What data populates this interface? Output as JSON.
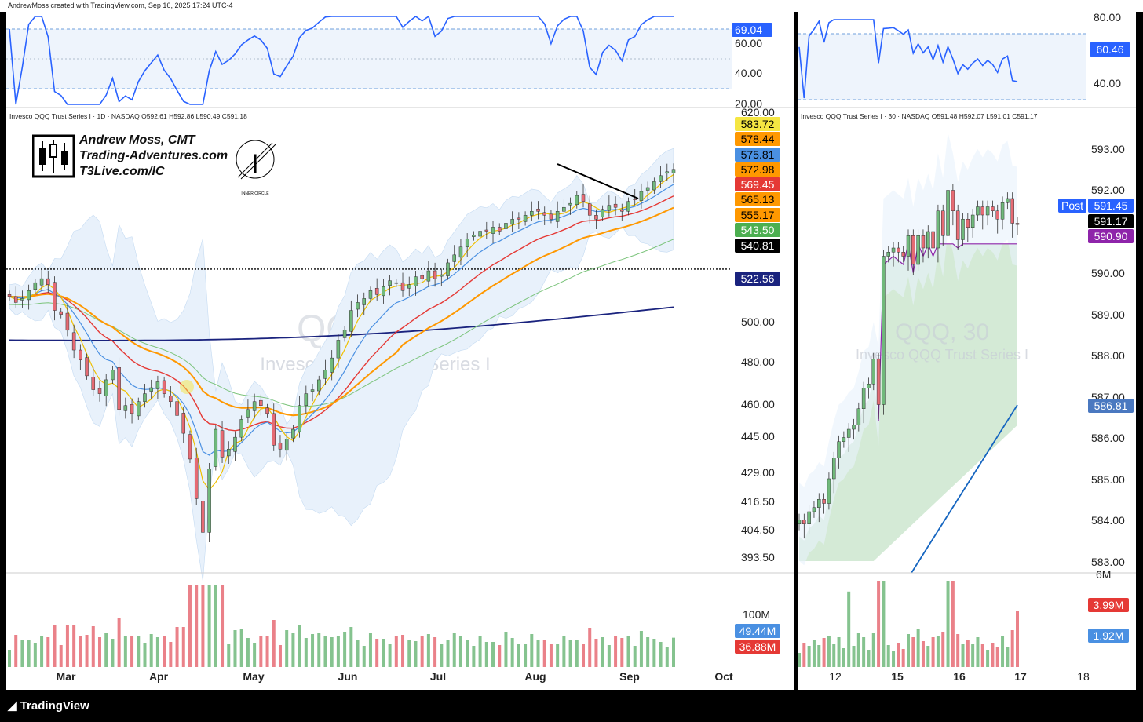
{
  "credit": "AndrewMoss created with TradingView.com, Sep 16, 2025 17:24 UTC-4",
  "footer_logo": "TradingView",
  "colors": {
    "up": "#70b97b",
    "down": "#e66b74",
    "sma10": "#f0c000",
    "ema20": "#4a90e2",
    "sma50": "#e53935",
    "sma100": "#ff9800",
    "sma200": "#1a237e",
    "green_ma": "#7cc47c",
    "rsi": "#2962ff",
    "vwap": "#8e24aa"
  },
  "left": {
    "symbol_line": "Invesco QQQ Trust Series I · 1D · NASDAQ   O592.61  H592.86  L590.49  C591.18",
    "watermark_symbol": "QQQ, 1D",
    "watermark_name": "Invesco QQQ Trust Series I",
    "brand_lines": [
      "Andrew Moss, CMT",
      "Trading-Adventures.com",
      "T3Live.com/IC"
    ],
    "brand_logo_caption": "INNER CIRCLE",
    "rsi_axis": [
      "60.00",
      "40.00",
      "20.00"
    ],
    "rsi_value": "69.04",
    "price_axis": [
      "620.00",
      "500.00",
      "480.00",
      "460.00",
      "445.00",
      "429.00",
      "416.50",
      "404.50",
      "393.50"
    ],
    "price_tags": [
      {
        "value": "583.72",
        "color": "#f5e642",
        "text": "#000"
      },
      {
        "value": "578.44",
        "color": "#ff9800",
        "text": "#000"
      },
      {
        "value": "575.81",
        "color": "#4a90e2",
        "text": "#000"
      },
      {
        "value": "572.98",
        "color": "#ff9800",
        "text": "#000"
      },
      {
        "value": "569.45",
        "color": "#e53935",
        "text": "#fff"
      },
      {
        "value": "565.13",
        "color": "#ff9800",
        "text": "#000"
      },
      {
        "value": "555.17",
        "color": "#ff9800",
        "text": "#000"
      },
      {
        "value": "543.50",
        "color": "#4caf50",
        "text": "#fff"
      },
      {
        "value": "540.81",
        "color": "#000000",
        "text": "#fff"
      },
      {
        "value": "522.56",
        "color": "#1a237e",
        "text": "#fff"
      }
    ],
    "volume_axis": "100M",
    "volume_tags": [
      {
        "value": "49.44M",
        "color": "#4a90e2"
      },
      {
        "value": "36.88M",
        "color": "#e53935"
      }
    ],
    "months": [
      "Mar",
      "Apr",
      "May",
      "Jun",
      "Jul",
      "Aug",
      "Sep",
      "Oct"
    ]
  },
  "right": {
    "symbol_line": "Invesco QQQ Trust Series I · 30 · NASDAQ   O591.48  H592.07  L591.01  C591.17",
    "watermark_symbol": "QQQ, 30",
    "watermark_name": "Invesco QQQ Trust Series I",
    "rsi_axis": [
      "80.00",
      "40.00"
    ],
    "rsi_value": "60.46",
    "price_axis": [
      "593.00",
      "592.00",
      "590.00",
      "589.00",
      "588.00",
      "587.00",
      "586.00",
      "585.00",
      "584.00",
      "583.00"
    ],
    "price_tags": [
      {
        "value": "591.45",
        "color": "#2962ff",
        "text": "#fff",
        "label": "Post"
      },
      {
        "value": "591.17",
        "color": "#000000",
        "text": "#fff"
      },
      {
        "value": "590.90",
        "color": "#8e24aa",
        "text": "#fff"
      },
      {
        "value": "586.81",
        "color": "#4a78c0",
        "text": "#fff"
      }
    ],
    "volume_axis": "6M",
    "volume_tags": [
      {
        "value": "3.99M",
        "color": "#e53935"
      },
      {
        "value": "1.92M",
        "color": "#4a90e2"
      }
    ],
    "days": [
      "12",
      "15",
      "16",
      "17",
      "18"
    ]
  },
  "chart_data": [
    {
      "type": "candlestick",
      "title": "QQQ, 1D",
      "ylim": [
        393.5,
        620
      ],
      "months": [
        "Mar",
        "Apr",
        "May",
        "Jun",
        "Jul",
        "Aug",
        "Sep",
        "Oct"
      ],
      "closes": [
        527,
        524,
        526,
        530,
        534,
        536,
        533,
        520,
        518,
        510,
        500,
        495,
        487,
        480,
        478,
        485,
        490,
        470,
        472,
        468,
        474,
        478,
        481,
        484,
        478,
        474,
        467,
        458,
        445,
        425,
        408,
        440,
        460,
        446,
        450,
        456,
        465,
        470,
        474,
        472,
        468,
        452,
        450,
        455,
        460,
        472,
        478,
        480,
        485,
        490,
        496,
        505,
        510,
        520,
        524,
        526,
        530,
        528,
        532,
        535,
        534,
        530,
        533,
        537,
        536,
        540,
        536,
        538,
        544,
        548,
        552,
        556,
        558,
        560,
        560,
        562,
        560,
        564,
        566,
        566,
        568,
        570,
        570,
        568,
        566,
        570,
        572,
        574,
        578,
        575,
        568,
        566,
        571,
        573,
        572,
        570,
        575,
        576,
        580,
        582,
        585,
        588,
        590,
        591
      ],
      "last": {
        "open": 592.61,
        "high": 592.86,
        "low": 590.49,
        "close": 591.18
      },
      "rsi_last": 69.04
    },
    {
      "type": "candlestick",
      "title": "QQQ, 30",
      "ylim": [
        583,
        593
      ],
      "days": [
        "12",
        "15",
        "16",
        "17",
        "18"
      ],
      "closes": [
        584.0,
        583.9,
        584.2,
        584.3,
        584.5,
        584.4,
        585.0,
        585.5,
        585.9,
        586.0,
        586.2,
        586.3,
        586.7,
        587.2,
        587.3,
        587.9,
        586.8,
        590.4,
        590.5,
        590.6,
        590.5,
        590.4,
        590.9,
        590.2,
        590.9,
        590.6,
        591.0,
        590.6,
        591.5,
        590.9,
        592.0,
        591.5,
        590.8,
        591.3,
        591.1,
        591.4,
        591.6,
        591.4,
        591.6,
        591.5,
        591.3,
        591.7,
        591.8,
        591.2,
        591.17
      ],
      "last": {
        "open": 591.48,
        "high": 592.07,
        "low": 591.01,
        "close": 591.17
      },
      "rsi_last": 60.46
    }
  ]
}
